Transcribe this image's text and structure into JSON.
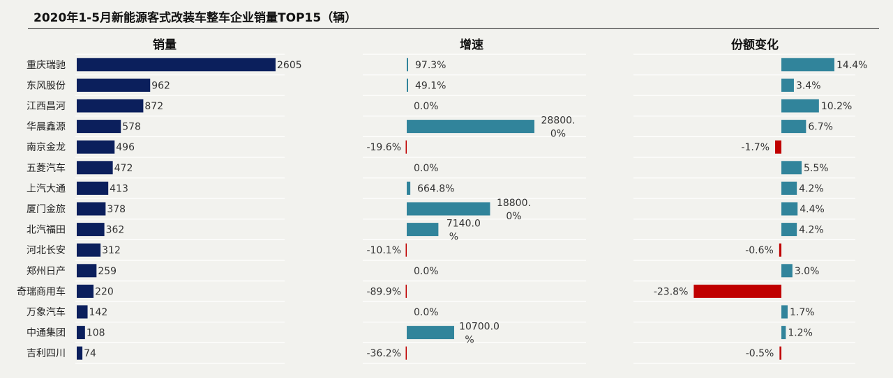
{
  "title": "2020年1-5月新能源客式改装车整车企业销量TOP15（辆）",
  "colors": {
    "sales_bar": "#0b1f5c",
    "positive_bar": "#31849b",
    "negative_bar": "#c00000",
    "gridline": "#ffffff",
    "background": "#f2f2ee"
  },
  "chart_data": [
    {
      "type": "bar",
      "orientation": "horizontal",
      "title": "销量",
      "categories": [
        "重庆瑞驰",
        "东风股份",
        "江西昌河",
        "华晨鑫源",
        "南京金龙",
        "五菱汽车",
        "上汽大通",
        "厦门金旅",
        "北汽福田",
        "河北长安",
        "郑州日产",
        "奇瑞商用车",
        "万象汽车",
        "中通集团",
        "吉利四川"
      ],
      "values": [
        2605,
        962,
        872,
        578,
        496,
        472,
        413,
        378,
        362,
        312,
        259,
        220,
        142,
        108,
        74
      ],
      "labels": [
        "2605",
        "962",
        "872",
        "578",
        "496",
        "472",
        "413",
        "378",
        "362",
        "312",
        "259",
        "220",
        "142",
        "108",
        "74"
      ]
    },
    {
      "type": "bar",
      "orientation": "horizontal",
      "title": "增速",
      "unit": "%",
      "categories": [
        "重庆瑞驰",
        "东风股份",
        "江西昌河",
        "华晨鑫源",
        "南京金龙",
        "五菱汽车",
        "上汽大通",
        "厦门金旅",
        "北汽福田",
        "河北长安",
        "郑州日产",
        "奇瑞商用车",
        "万象汽车",
        "中通集团",
        "吉利四川"
      ],
      "values": [
        97.3,
        49.1,
        0.0,
        28800.0,
        -19.6,
        0.0,
        664.8,
        18800.0,
        7140.0,
        -10.1,
        0.0,
        -89.9,
        0.0,
        10700.0,
        -36.2
      ],
      "labels": [
        "97.3%",
        "49.1%",
        "0.0%",
        "28800.0%",
        "-19.6%",
        "0.0%",
        "664.8%",
        "18800.0%",
        "7140.0%",
        "-10.1%",
        "0.0%",
        "-89.9%",
        "0.0%",
        "10700.0%",
        "-36.2%"
      ]
    },
    {
      "type": "bar",
      "orientation": "horizontal",
      "title": "份额变化",
      "unit": "%",
      "categories": [
        "重庆瑞驰",
        "东风股份",
        "江西昌河",
        "华晨鑫源",
        "南京金龙",
        "五菱汽车",
        "上汽大通",
        "厦门金旅",
        "北汽福田",
        "河北长安",
        "郑州日产",
        "奇瑞商用车",
        "万象汽车",
        "中通集团",
        "吉利四川"
      ],
      "values": [
        14.4,
        3.4,
        10.2,
        6.7,
        -1.7,
        5.5,
        4.2,
        4.4,
        4.2,
        -0.6,
        3.0,
        -23.8,
        1.7,
        1.2,
        -0.5
      ],
      "labels": [
        "14.4%",
        "3.4%",
        "10.2%",
        "6.7%",
        "-1.7%",
        "5.5%",
        "4.2%",
        "4.4%",
        "4.2%",
        "-0.6%",
        "3.0%",
        "-23.8%",
        "1.7%",
        "1.2%",
        "-0.5%"
      ]
    }
  ]
}
